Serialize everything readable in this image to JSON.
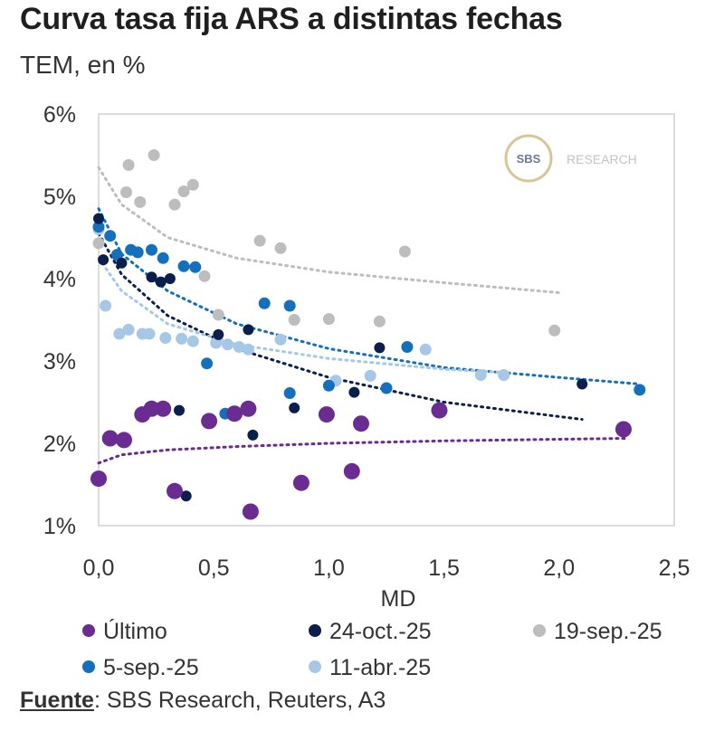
{
  "title": "Curva tasa fija ARS a distintas fechas",
  "subtitle": "TEM, en %",
  "source_label": "Fuente",
  "source_text": ": SBS Research, Reuters, A3",
  "logo": {
    "text_left": "SBS",
    "text_right": "RESEARCH"
  },
  "chart_data": {
    "type": "scatter",
    "xlabel": "MD",
    "ylabel": "",
    "xlim": [
      0,
      2.5
    ],
    "ylim": [
      1,
      6
    ],
    "xticks": [
      0,
      0.5,
      1.0,
      1.5,
      2.0,
      2.5
    ],
    "xtick_labels": [
      "0,0",
      "0,5",
      "1,0",
      "1,5",
      "2,0",
      "2,5"
    ],
    "yticks": [
      1,
      2,
      3,
      4,
      5,
      6
    ],
    "ytick_labels": [
      "1%",
      "2%",
      "3%",
      "4%",
      "5%",
      "6%"
    ],
    "grid": false,
    "legend_position": "bottom",
    "series": [
      {
        "name": "Último",
        "color": "#6a2c91",
        "size": 9,
        "points": [
          [
            0.0,
            1.57
          ],
          [
            0.05,
            2.06
          ],
          [
            0.11,
            2.04
          ],
          [
            0.19,
            2.35
          ],
          [
            0.23,
            2.42
          ],
          [
            0.28,
            2.42
          ],
          [
            0.33,
            1.42
          ],
          [
            0.48,
            2.27
          ],
          [
            0.59,
            2.36
          ],
          [
            0.65,
            2.42
          ],
          [
            0.66,
            1.17
          ],
          [
            0.88,
            1.52
          ],
          [
            0.99,
            2.35
          ],
          [
            1.1,
            1.66
          ],
          [
            1.14,
            2.24
          ],
          [
            1.48,
            2.4
          ],
          [
            2.28,
            2.17
          ]
        ],
        "trend": [
          [
            0.0,
            1.76
          ],
          [
            0.1,
            1.86
          ],
          [
            0.3,
            1.92
          ],
          [
            0.6,
            1.96
          ],
          [
            1.0,
            2.0
          ],
          [
            1.5,
            2.03
          ],
          [
            2.0,
            2.05
          ],
          [
            2.3,
            2.06
          ]
        ]
      },
      {
        "name": "24-oct.-25",
        "color": "#0b1f4d",
        "size": 6,
        "points": [
          [
            0.0,
            4.73
          ],
          [
            0.02,
            4.23
          ],
          [
            0.1,
            4.19
          ],
          [
            0.23,
            4.02
          ],
          [
            0.27,
            3.96
          ],
          [
            0.31,
            4.0
          ],
          [
            0.35,
            2.4
          ],
          [
            0.38,
            1.36
          ],
          [
            0.52,
            3.32
          ],
          [
            0.65,
            3.38
          ],
          [
            0.67,
            2.1
          ],
          [
            0.85,
            2.43
          ],
          [
            1.11,
            2.62
          ],
          [
            1.22,
            3.16
          ],
          [
            2.1,
            2.72
          ]
        ],
        "trend": [
          [
            0.0,
            4.55
          ],
          [
            0.1,
            4.05
          ],
          [
            0.3,
            3.55
          ],
          [
            0.6,
            3.15
          ],
          [
            1.0,
            2.8
          ],
          [
            1.5,
            2.5
          ],
          [
            2.1,
            2.29
          ]
        ]
      },
      {
        "name": "19-sep.-25",
        "color": "#bdbdbd",
        "size": 6.5,
        "points": [
          [
            0.0,
            4.43
          ],
          [
            0.12,
            5.05
          ],
          [
            0.13,
            5.38
          ],
          [
            0.18,
            4.93
          ],
          [
            0.24,
            5.5
          ],
          [
            0.33,
            4.9
          ],
          [
            0.37,
            5.06
          ],
          [
            0.41,
            5.14
          ],
          [
            0.46,
            4.03
          ],
          [
            0.52,
            3.56
          ],
          [
            0.7,
            4.46
          ],
          [
            0.79,
            4.37
          ],
          [
            0.85,
            3.5
          ],
          [
            1.0,
            3.51
          ],
          [
            1.22,
            3.48
          ],
          [
            1.33,
            4.33
          ],
          [
            1.98,
            3.37
          ]
        ],
        "trend": [
          [
            0.0,
            5.35
          ],
          [
            0.1,
            4.9
          ],
          [
            0.3,
            4.5
          ],
          [
            0.6,
            4.25
          ],
          [
            1.0,
            4.08
          ],
          [
            1.5,
            3.95
          ],
          [
            2.0,
            3.83
          ]
        ]
      },
      {
        "name": "5-sep.-25",
        "color": "#1470bd",
        "size": 6.5,
        "points": [
          [
            0.0,
            4.63
          ],
          [
            0.05,
            4.52
          ],
          [
            0.08,
            4.29
          ],
          [
            0.14,
            4.35
          ],
          [
            0.17,
            4.32
          ],
          [
            0.23,
            4.35
          ],
          [
            0.28,
            4.25
          ],
          [
            0.37,
            4.15
          ],
          [
            0.42,
            4.14
          ],
          [
            0.47,
            2.97
          ],
          [
            0.55,
            2.36
          ],
          [
            0.72,
            3.7
          ],
          [
            0.83,
            2.61
          ],
          [
            0.83,
            3.67
          ],
          [
            1.0,
            2.7
          ],
          [
            1.25,
            2.67
          ],
          [
            1.34,
            3.17
          ],
          [
            2.35,
            2.65
          ]
        ],
        "trend": [
          [
            0.0,
            4.85
          ],
          [
            0.1,
            4.3
          ],
          [
            0.3,
            3.85
          ],
          [
            0.6,
            3.45
          ],
          [
            1.0,
            3.15
          ],
          [
            1.5,
            2.92
          ],
          [
            2.0,
            2.8
          ],
          [
            2.35,
            2.72
          ]
        ]
      },
      {
        "name": "11-abr.-25",
        "color": "#a6c8e6",
        "size": 6.5,
        "points": [
          [
            0.0,
            4.6
          ],
          [
            0.03,
            3.67
          ],
          [
            0.09,
            3.33
          ],
          [
            0.13,
            3.38
          ],
          [
            0.19,
            3.33
          ],
          [
            0.22,
            3.33
          ],
          [
            0.29,
            3.28
          ],
          [
            0.36,
            3.27
          ],
          [
            0.41,
            3.24
          ],
          [
            0.51,
            3.22
          ],
          [
            0.56,
            3.2
          ],
          [
            0.61,
            3.17
          ],
          [
            0.65,
            3.14
          ],
          [
            0.79,
            3.26
          ],
          [
            1.03,
            2.76
          ],
          [
            1.18,
            2.82
          ],
          [
            1.42,
            3.14
          ],
          [
            1.66,
            2.83
          ],
          [
            1.76,
            2.83
          ]
        ],
        "trend": [
          [
            0.0,
            4.25
          ],
          [
            0.1,
            3.85
          ],
          [
            0.3,
            3.45
          ],
          [
            0.6,
            3.2
          ],
          [
            1.0,
            3.03
          ],
          [
            1.5,
            2.9
          ],
          [
            1.76,
            2.86
          ]
        ]
      }
    ]
  }
}
